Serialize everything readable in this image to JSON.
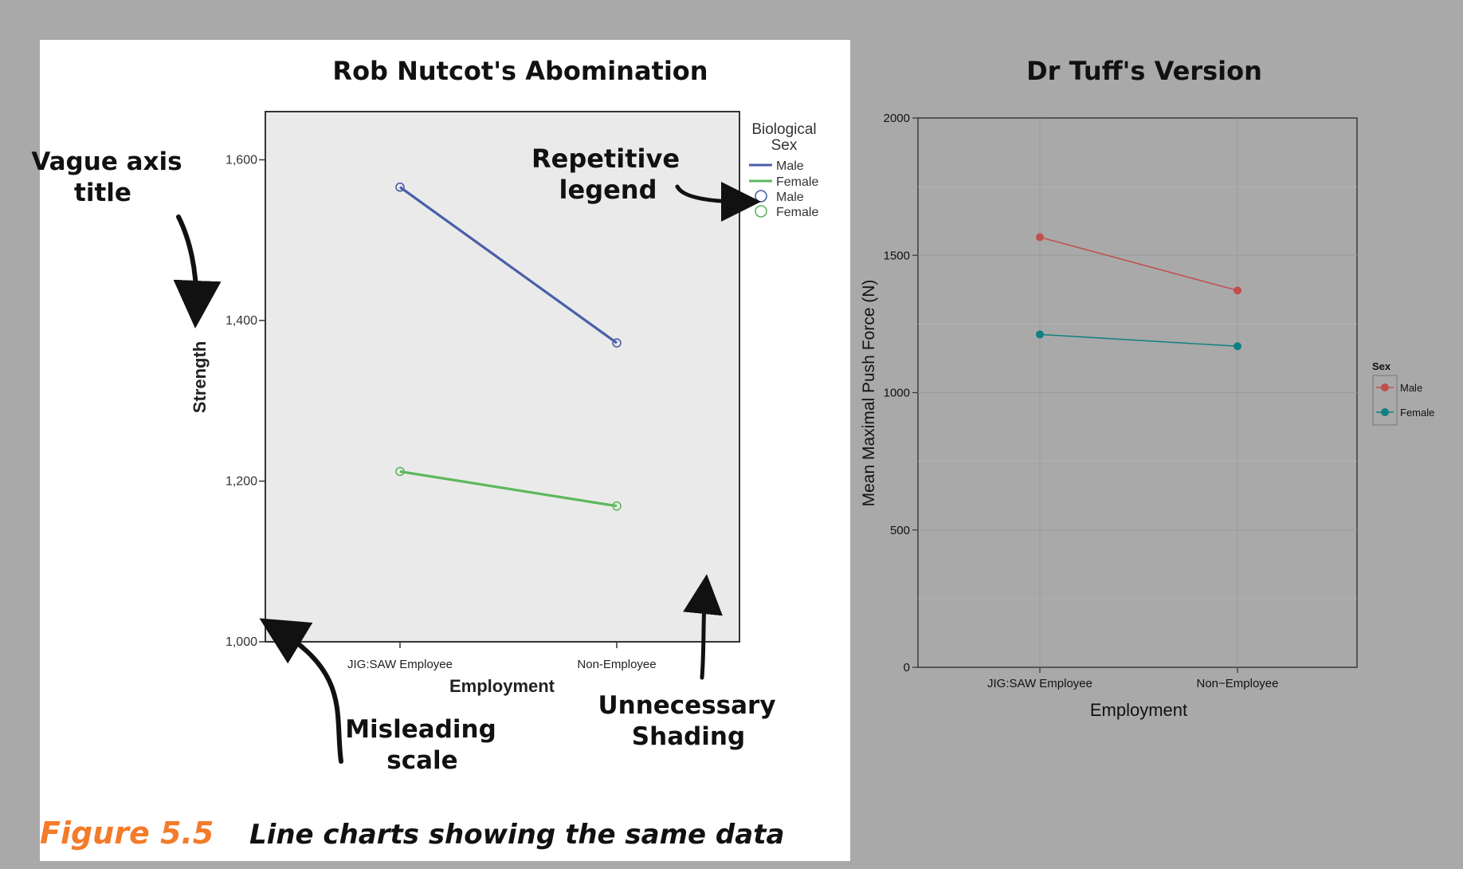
{
  "left_chart": {
    "title": "Rob Nutcot's Abomination",
    "xlabel": "Employment",
    "ylabel": "Strength",
    "y_ticks": [
      "1,000",
      "1,200",
      "1,400",
      "1,600"
    ],
    "legend_title_line1": "Biological",
    "legend_title_line2": "Sex",
    "legend_entries": [
      "Male",
      "Female",
      "Male",
      "Female"
    ]
  },
  "right_chart": {
    "title": "Dr Tuff's Version",
    "xlabel": "Employment",
    "ylabel": "Mean Maximal Push Force (N)",
    "y_ticks": [
      "0",
      "500",
      "1000",
      "1500",
      "2000"
    ],
    "legend_title": "Sex",
    "legend_entries": [
      "Male",
      "Female"
    ]
  },
  "annotations": {
    "vague_line1": "Vague axis",
    "vague_line2": "title",
    "repetitive_line1": "Repetitive",
    "repetitive_line2": "legend",
    "misleading_line1": "Misleading",
    "misleading_line2": "scale",
    "shading_line1": "Unnecessary",
    "shading_line2": "Shading"
  },
  "caption": {
    "figure_label": "Figure 5.5",
    "text": "Line charts showing the same data"
  },
  "colors": {
    "left_male": "#4a5fa8",
    "left_female": "#5cb85c",
    "right_male": "#c0504d",
    "right_female": "#118080"
  },
  "chart_data": [
    {
      "type": "line",
      "title": "Rob Nutcot's Abomination",
      "categories": [
        "JIG:SAW Employee",
        "Non-Employee"
      ],
      "series": [
        {
          "name": "Male",
          "values": [
            1566,
            1372
          ]
        },
        {
          "name": "Female",
          "values": [
            1212,
            1169
          ]
        }
      ],
      "xlabel": "Employment",
      "ylabel": "Strength",
      "ylim": [
        1000,
        1660
      ],
      "grid": false,
      "legend": "top-right-outside"
    },
    {
      "type": "line",
      "title": "Dr Tuff's Version",
      "categories": [
        "JIG:SAW Employee",
        "Non−Employee"
      ],
      "series": [
        {
          "name": "Male",
          "values": [
            1566,
            1372
          ]
        },
        {
          "name": "Female",
          "values": [
            1212,
            1169
          ]
        }
      ],
      "xlabel": "Employment",
      "ylabel": "Mean Maximal Push Force (N)",
      "ylim": [
        0,
        2000
      ],
      "grid": true,
      "legend": "right"
    }
  ]
}
